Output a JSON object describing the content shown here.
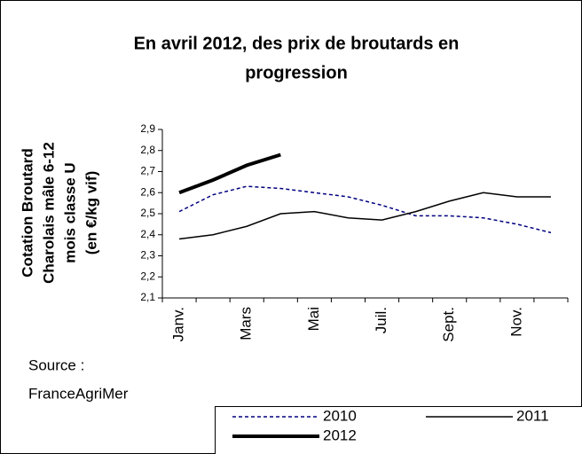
{
  "chart_data": {
    "type": "line",
    "title": [
      "En avril 2012, des prix de broutards en",
      "progression"
    ],
    "y_label": [
      "Cotation Broutard",
      "Charolais mâle 6-12",
      "mois classe U",
      "(en €/kg vif)"
    ],
    "source": [
      "Source :",
      "FranceAgriMer"
    ],
    "categories": [
      "Janv.",
      null,
      "Mars",
      null,
      "Mai",
      null,
      "Juil.",
      null,
      "Sept.",
      null,
      "Nov.",
      null
    ],
    "series": [
      {
        "name": "2010",
        "color": "#000080",
        "dashed": true,
        "width": 1.5,
        "values": [
          2.51,
          2.59,
          2.63,
          2.62,
          2.6,
          2.58,
          2.54,
          2.49,
          2.49,
          2.48,
          2.45,
          2.41
        ]
      },
      {
        "name": "2011",
        "color": "#000000",
        "dashed": false,
        "width": 1.5,
        "values": [
          2.38,
          2.4,
          2.44,
          2.5,
          2.51,
          2.48,
          2.47,
          2.51,
          2.56,
          2.6,
          2.58,
          2.58
        ]
      },
      {
        "name": "2012",
        "color": "#000000",
        "dashed": false,
        "width": 4,
        "values": [
          2.6,
          2.66,
          2.73,
          2.78,
          null,
          null,
          null,
          null,
          null,
          null,
          null,
          null
        ]
      }
    ],
    "ylim": [
      2.1,
      2.9
    ],
    "yticks": [
      {
        "value": 2.1,
        "label": "2,1"
      },
      {
        "value": 2.2,
        "label": "2,2"
      },
      {
        "value": 2.3,
        "label": "2,3"
      },
      {
        "value": 2.4,
        "label": "2,4"
      },
      {
        "value": 2.5,
        "label": "2,5"
      },
      {
        "value": 2.6,
        "label": "2,6"
      },
      {
        "value": 2.7,
        "label": "2,7"
      },
      {
        "value": 2.8,
        "label": "2,8"
      },
      {
        "value": 2.9,
        "label": "2,9"
      }
    ]
  }
}
